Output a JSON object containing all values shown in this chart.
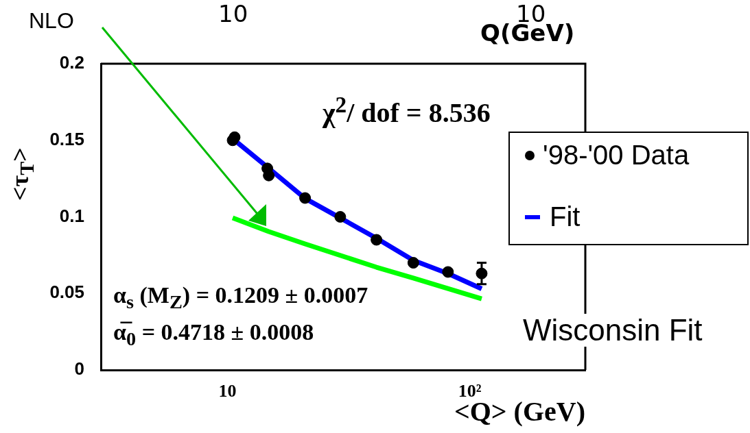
{
  "chart_data": {
    "type": "scatter",
    "xlabel": "<Q> (GeV)",
    "ylabel": "<τ$_{T}$>",
    "log": "x",
    "xlim": [
      3,
      300
    ],
    "ylim": [
      0,
      0.2
    ],
    "xticks": [
      {
        "value": 10,
        "label": "10"
      },
      {
        "value": 100,
        "label": "10²"
      }
    ],
    "yticks": [
      0,
      0.05,
      0.1,
      0.15,
      0.2
    ],
    "grid": false,
    "legend": "right",
    "series": [
      {
        "name": "'98-'00 Data",
        "marker": "circle",
        "color": "#000000",
        "x": [
          10.5,
          10.7,
          14.6,
          14.8,
          20.9,
          29.2,
          41.2,
          58.5,
          81.3,
          112
        ],
        "values": [
          0.15,
          0.152,
          0.1316,
          0.127,
          0.1123,
          0.1,
          0.085,
          0.07,
          0.064,
          0.063
        ],
        "errors": [
          null,
          null,
          null,
          null,
          null,
          null,
          null,
          null,
          null,
          0.007
        ]
      },
      {
        "name": "Fit",
        "type": "line",
        "marker": "none",
        "color": "#0000ff",
        "x": [
          10.7,
          14.6,
          20.9,
          29.2,
          41.2,
          58.5,
          81.3,
          112
        ],
        "values": [
          0.15,
          0.1325,
          0.112,
          0.0993,
          0.086,
          0.0716,
          0.063,
          0.053
        ]
      },
      {
        "name": "NLO",
        "type": "line",
        "marker": "none",
        "color": "#00ff00",
        "x": [
          10.5,
          14.8,
          20.9,
          41.2,
          58.5,
          112
        ],
        "values": [
          0.0993,
          0.0904,
          0.0823,
          0.0671,
          0.06,
          0.0465
        ]
      }
    ],
    "annotations": [
      "χ$^{2}$/ dof = 8.536",
      "α$_{s}$ (M$_{Z}$) = 0.1209 ± 0.0007",
      "α̅$_{0}$ = 0.4718 ± 0.0008",
      "Wisconsin Fit",
      "10",
      "10",
      "Q(GeV)"
    ]
  }
}
